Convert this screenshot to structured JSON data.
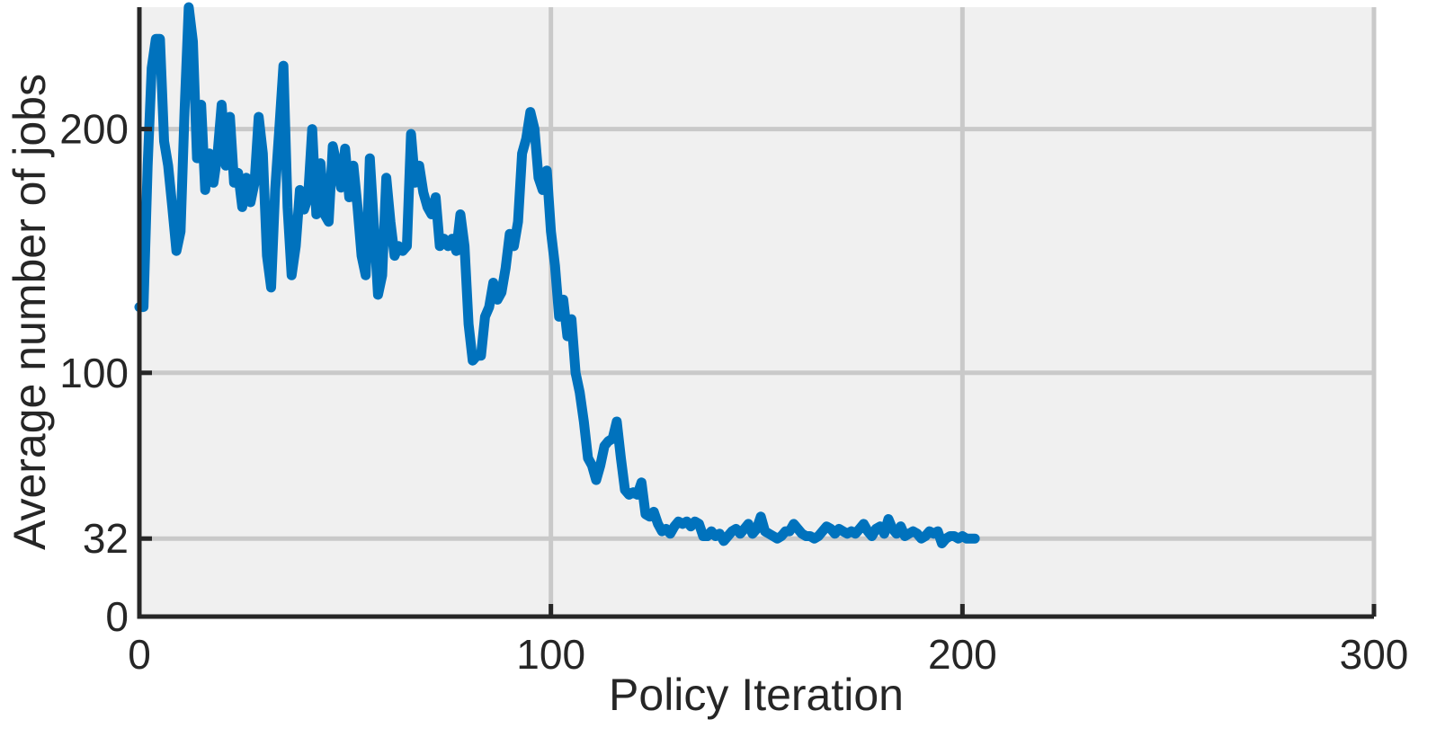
{
  "chart_data": {
    "type": "line",
    "title": "",
    "xlabel": "Policy Iteration",
    "ylabel": "Average number of jobs",
    "xlim": [
      0,
      300
    ],
    "ylim": [
      0,
      250
    ],
    "xticks": [
      0,
      100,
      200,
      300
    ],
    "yticks": [
      0,
      32,
      100,
      200
    ],
    "xtick_labels": [
      "0",
      "100",
      "200",
      "300"
    ],
    "ytick_labels": [
      "0",
      "32",
      "100",
      "200"
    ],
    "grid": true,
    "background_color": "#f0f0f0",
    "line_color": "#0072bd",
    "series": [
      {
        "points": [
          [
            0,
            127
          ],
          [
            1,
            127
          ],
          [
            2,
            185
          ],
          [
            3,
            225
          ],
          [
            4,
            237
          ],
          [
            5,
            237
          ],
          [
            6,
            195
          ],
          [
            7,
            185
          ],
          [
            8,
            168
          ],
          [
            9,
            150
          ],
          [
            10,
            158
          ],
          [
            11,
            208
          ],
          [
            12,
            250
          ],
          [
            13,
            236
          ],
          [
            14,
            188
          ],
          [
            15,
            210
          ],
          [
            16,
            175
          ],
          [
            17,
            190
          ],
          [
            18,
            178
          ],
          [
            19,
            190
          ],
          [
            20,
            210
          ],
          [
            21,
            185
          ],
          [
            22,
            205
          ],
          [
            23,
            178
          ],
          [
            24,
            182
          ],
          [
            25,
            168
          ],
          [
            26,
            180
          ],
          [
            27,
            170
          ],
          [
            28,
            178
          ],
          [
            29,
            205
          ],
          [
            30,
            190
          ],
          [
            31,
            148
          ],
          [
            32,
            135
          ],
          [
            33,
            175
          ],
          [
            34,
            200
          ],
          [
            35,
            226
          ],
          [
            36,
            168
          ],
          [
            37,
            140
          ],
          [
            38,
            152
          ],
          [
            39,
            175
          ],
          [
            40,
            167
          ],
          [
            41,
            172
          ],
          [
            42,
            200
          ],
          [
            43,
            165
          ],
          [
            44,
            186
          ],
          [
            45,
            165
          ],
          [
            46,
            162
          ],
          [
            47,
            193
          ],
          [
            48,
            185
          ],
          [
            49,
            176
          ],
          [
            50,
            192
          ],
          [
            51,
            172
          ],
          [
            52,
            185
          ],
          [
            53,
            168
          ],
          [
            54,
            148
          ],
          [
            55,
            140
          ],
          [
            56,
            188
          ],
          [
            57,
            160
          ],
          [
            58,
            132
          ],
          [
            59,
            140
          ],
          [
            60,
            180
          ],
          [
            61,
            162
          ],
          [
            62,
            148
          ],
          [
            63,
            152
          ],
          [
            64,
            150
          ],
          [
            65,
            152
          ],
          [
            66,
            198
          ],
          [
            67,
            178
          ],
          [
            68,
            185
          ],
          [
            69,
            174
          ],
          [
            70,
            168
          ],
          [
            71,
            165
          ],
          [
            72,
            172
          ],
          [
            73,
            152
          ],
          [
            74,
            155
          ],
          [
            75,
            152
          ],
          [
            76,
            155
          ],
          [
            77,
            150
          ],
          [
            78,
            165
          ],
          [
            79,
            152
          ],
          [
            80,
            120
          ],
          [
            81,
            105
          ],
          [
            82,
            107
          ],
          [
            83,
            107
          ],
          [
            84,
            123
          ],
          [
            85,
            127
          ],
          [
            86,
            137
          ],
          [
            87,
            130
          ],
          [
            88,
            133
          ],
          [
            89,
            143
          ],
          [
            90,
            157
          ],
          [
            91,
            152
          ],
          [
            92,
            162
          ],
          [
            93,
            190
          ],
          [
            94,
            196
          ],
          [
            95,
            207
          ],
          [
            96,
            200
          ],
          [
            97,
            180
          ],
          [
            98,
            175
          ],
          [
            99,
            183
          ],
          [
            100,
            158
          ],
          [
            101,
            144
          ],
          [
            102,
            123
          ],
          [
            103,
            130
          ],
          [
            104,
            115
          ],
          [
            105,
            122
          ],
          [
            106,
            100
          ],
          [
            107,
            92
          ],
          [
            108,
            80
          ],
          [
            109,
            65
          ],
          [
            110,
            62
          ],
          [
            111,
            56
          ],
          [
            112,
            62
          ],
          [
            113,
            70
          ],
          [
            114,
            72
          ],
          [
            115,
            73
          ],
          [
            116,
            80
          ],
          [
            117,
            65
          ],
          [
            118,
            52
          ],
          [
            119,
            50
          ],
          [
            120,
            51
          ],
          [
            121,
            50
          ],
          [
            122,
            55
          ],
          [
            123,
            42
          ],
          [
            124,
            41
          ],
          [
            125,
            43
          ],
          [
            126,
            38
          ],
          [
            127,
            35
          ],
          [
            128,
            36
          ],
          [
            129,
            34
          ],
          [
            130,
            37
          ],
          [
            131,
            39
          ],
          [
            132,
            38
          ],
          [
            133,
            39
          ],
          [
            134,
            37
          ],
          [
            135,
            39
          ],
          [
            136,
            38
          ],
          [
            137,
            33
          ],
          [
            138,
            33
          ],
          [
            139,
            35
          ],
          [
            140,
            33
          ],
          [
            141,
            34
          ],
          [
            142,
            31
          ],
          [
            143,
            33
          ],
          [
            144,
            35
          ],
          [
            145,
            36
          ],
          [
            146,
            34
          ],
          [
            147,
            36
          ],
          [
            148,
            38
          ],
          [
            149,
            34
          ],
          [
            150,
            36
          ],
          [
            151,
            41
          ],
          [
            152,
            35
          ],
          [
            153,
            34
          ],
          [
            154,
            33
          ],
          [
            155,
            32
          ],
          [
            156,
            33
          ],
          [
            157,
            35
          ],
          [
            158,
            35
          ],
          [
            159,
            38
          ],
          [
            160,
            36
          ],
          [
            161,
            34
          ],
          [
            162,
            33
          ],
          [
            163,
            33
          ],
          [
            164,
            32
          ],
          [
            165,
            33
          ],
          [
            166,
            35
          ],
          [
            167,
            37
          ],
          [
            168,
            36
          ],
          [
            169,
            34
          ],
          [
            170,
            36
          ],
          [
            171,
            35
          ],
          [
            172,
            34
          ],
          [
            173,
            35
          ],
          [
            174,
            34
          ],
          [
            175,
            36
          ],
          [
            176,
            38
          ],
          [
            177,
            35
          ],
          [
            178,
            33
          ],
          [
            179,
            36
          ],
          [
            180,
            37
          ],
          [
            181,
            34
          ],
          [
            182,
            40
          ],
          [
            183,
            36
          ],
          [
            184,
            34
          ],
          [
            185,
            37
          ],
          [
            186,
            33
          ],
          [
            187,
            34
          ],
          [
            188,
            35
          ],
          [
            189,
            34
          ],
          [
            190,
            32
          ],
          [
            191,
            33
          ],
          [
            192,
            35
          ],
          [
            193,
            34
          ],
          [
            194,
            35
          ],
          [
            195,
            30
          ],
          [
            196,
            32
          ],
          [
            197,
            33
          ],
          [
            198,
            33
          ],
          [
            199,
            32
          ],
          [
            200,
            33
          ],
          [
            201,
            32
          ],
          [
            202,
            32
          ],
          [
            203,
            32
          ]
        ]
      }
    ]
  }
}
